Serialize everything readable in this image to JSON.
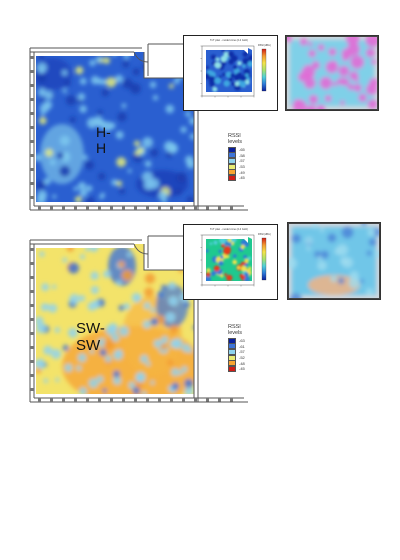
{
  "panels": [
    {
      "region_label": "H-H",
      "inset_title": "TnT plan - model zone (2.4 GHz)",
      "inset_cbar_title": "RSSI (dBm)",
      "legend": {
        "title": "RSSI levels",
        "items": [
          {
            "label": "-65",
            "color": "#0a1f9c"
          },
          {
            "label": "-58",
            "color": "#3d74d8"
          },
          {
            "label": "-57",
            "color": "#8fd4ef"
          },
          {
            "label": "-53",
            "color": "#e9ec73"
          },
          {
            "label": "-49",
            "color": "#f8a531"
          },
          {
            "label": "-45",
            "color": "#d11d16"
          }
        ]
      },
      "heat": {
        "base": "#2a5fd0",
        "spots": "#7cc8ee",
        "hot": "#e6ee7a"
      }
    },
    {
      "region_label": "SW-SW",
      "inset_title": "TnT plan - model zone (2.4 GHz)",
      "inset_cbar_title": "RSSI (dBm)",
      "legend": {
        "title": "RSSI levels",
        "items": [
          {
            "label": "-63",
            "color": "#0a1f9c"
          },
          {
            "label": "-61",
            "color": "#3d74d8"
          },
          {
            "label": "-57",
            "color": "#8fd4ef"
          },
          {
            "label": "-52",
            "color": "#e9ec73"
          },
          {
            "label": "-48",
            "color": "#f8a531"
          },
          {
            "label": "-45",
            "color": "#d11d16"
          }
        ]
      },
      "heat": {
        "base": "#f3e36a",
        "spots": "#8fd4ef",
        "hot": "#f39a32"
      }
    }
  ],
  "colors": {
    "wall": "#555555",
    "magenta_overlay": "#e26bd6",
    "cyan_overlay": "#7fd0e8"
  }
}
